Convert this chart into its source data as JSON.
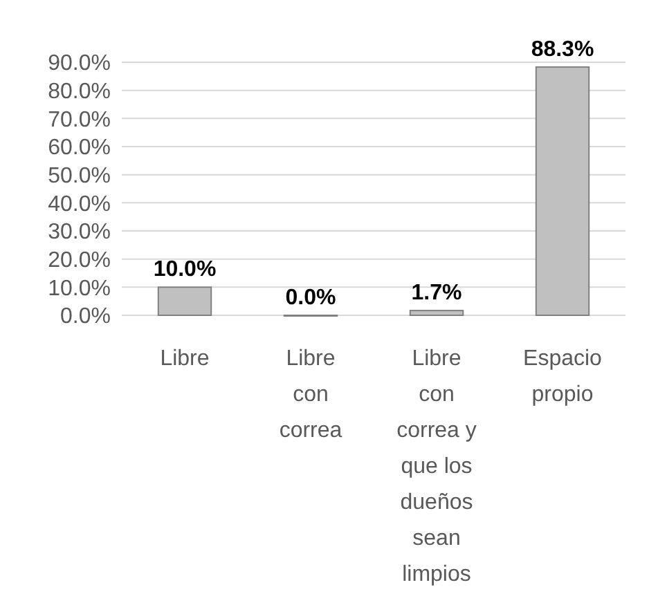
{
  "chart_data": {
    "type": "bar",
    "categories": [
      "Libre",
      "Libre con correa",
      "Libre con correa y que los dueños sean limpios",
      "Espacio propio"
    ],
    "values": [
      10.0,
      0.0,
      1.7,
      88.3
    ],
    "value_labels": [
      "10.0%",
      "0.0%",
      "1.7%",
      "88.3%"
    ],
    "color": "#c0c0c0",
    "ylim": [
      0,
      90
    ],
    "yticks": [
      {
        "value": 0,
        "label": "0.0%"
      },
      {
        "value": 10,
        "label": "10.0%"
      },
      {
        "value": 20,
        "label": "20.0%"
      },
      {
        "value": 30,
        "label": "30.0%"
      },
      {
        "value": 40,
        "label": "40.0%"
      },
      {
        "value": 50,
        "label": "50.0%"
      },
      {
        "value": 60,
        "label": "60.0%"
      },
      {
        "value": 70,
        "label": "70.0%"
      },
      {
        "value": 80,
        "label": "80.0%"
      },
      {
        "value": 90,
        "label": "90.0%"
      }
    ],
    "grid": true
  }
}
